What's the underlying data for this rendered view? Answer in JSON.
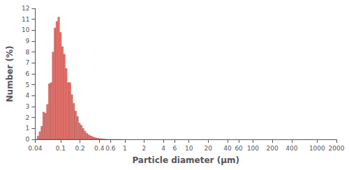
{
  "chart_data": {
    "type": "histogram",
    "xlabel": "Particle diameter (μm)",
    "ylabel": "Number (%)",
    "bins": [
      0.04,
      0.042801,
      0.045798,
      0.049006,
      0.052437,
      0.05611,
      0.060039,
      0.064243,
      0.068742,
      0.073556,
      0.078707,
      0.084219,
      0.090116,
      0.096427,
      0.10318,
      0.11041,
      0.11814,
      0.12641,
      0.13526,
      0.14473,
      0.15487,
      0.16571,
      0.17732,
      0.18974,
      0.20302,
      0.21724,
      0.23245,
      0.24873,
      0.26615,
      0.28479,
      0.30473,
      0.32607,
      0.34891,
      0.37334,
      0.39948,
      0.42746,
      0.45739,
      0.48942,
      0.5237,
      0.56037,
      0.59961,
      0.6416,
      0.68653,
      0.73461,
      0.78605,
      0.8411,
      0.9
    ],
    "values": [
      0.0,
      0.3,
      0.7,
      1.2,
      2.5,
      2.4,
      3.2,
      5.1,
      5.2,
      8.0,
      10.2,
      10.8,
      11.2,
      9.8,
      8.5,
      7.8,
      6.5,
      5.2,
      5.2,
      4.1,
      3.3,
      2.6,
      2.1,
      1.5,
      1.3,
      1.0,
      0.75,
      0.55,
      0.42,
      0.32,
      0.25,
      0.18,
      0.13,
      0.1,
      0.07,
      0.05,
      0.04,
      0.02,
      0.01,
      0.01,
      0.005,
      0.003,
      0.001,
      0.001,
      0.0,
      0.0
    ],
    "color": "#e8706a",
    "log": "x",
    "xlim": [
      0.04,
      2000
    ],
    "xticks": [
      0.04,
      0.1,
      0.2,
      0.4,
      0.6,
      1,
      2,
      4,
      6,
      10,
      20,
      40,
      60,
      100,
      200,
      400,
      1000,
      2000
    ],
    "ylim": [
      0,
      12
    ],
    "yticks": [
      0,
      1,
      2,
      3,
      4,
      5,
      6,
      7,
      8,
      9,
      10,
      11,
      12
    ],
    "grid": false
  }
}
